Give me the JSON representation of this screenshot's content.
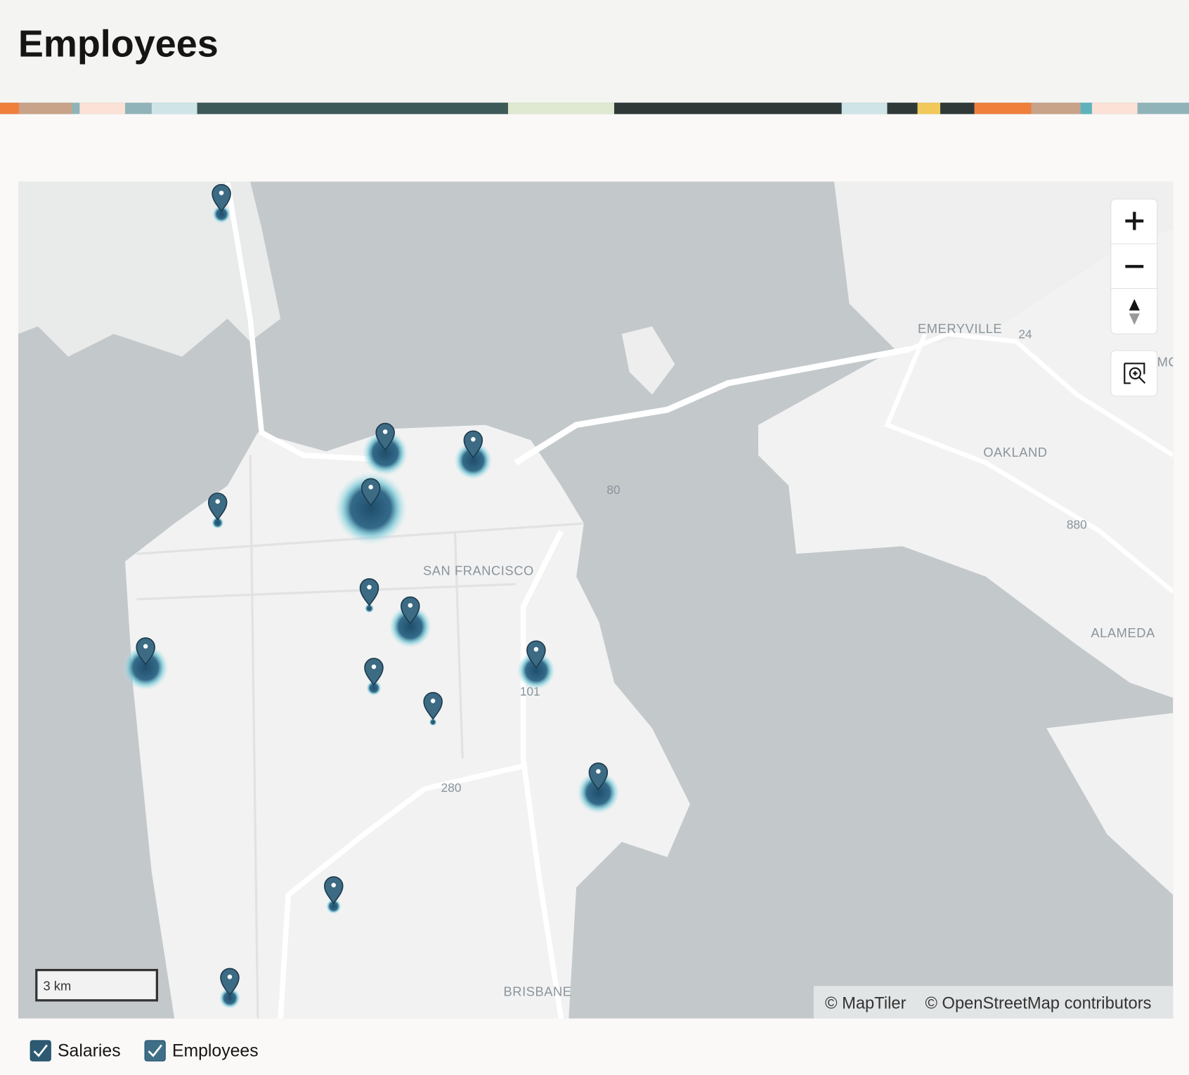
{
  "header": {
    "title": "Employees"
  },
  "map": {
    "place_labels": [
      "SAN FRANCISCO",
      "EMERYVILLE",
      "OAKLAND",
      "ALAMEDA",
      "BRISBANE"
    ],
    "road_labels": [
      "80",
      "880",
      "101",
      "280",
      "24"
    ],
    "edge_label": "MC",
    "scale": "3 km",
    "attribution": [
      "© MapTiler",
      "© OpenStreetMap contributors"
    ]
  },
  "legend": {
    "items": [
      "Salaries",
      "Employees"
    ]
  }
}
